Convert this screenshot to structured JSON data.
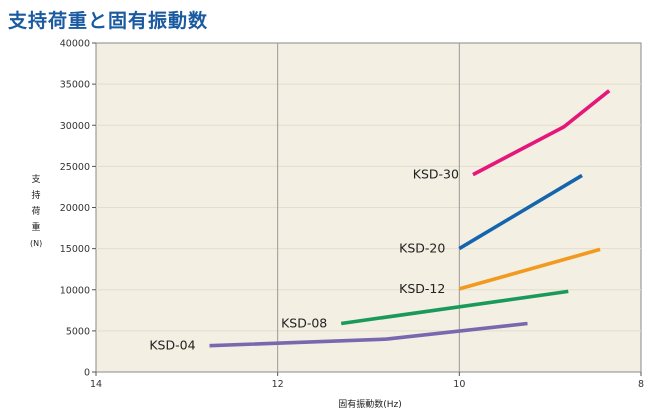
{
  "title": "支持荷重と固有振動数",
  "chart_data": {
    "type": "line",
    "xlabel": "固有振動数(Hz)",
    "ylabel_chars": [
      "支",
      "持",
      "荷",
      "重"
    ],
    "ylabel_unit": "(N)",
    "xlim": [
      14,
      8
    ],
    "ylim": [
      0,
      40000
    ],
    "x_ticks": [
      14,
      12,
      10,
      8
    ],
    "y_ticks": [
      0,
      5000,
      10000,
      15000,
      20000,
      25000,
      30000,
      35000,
      40000
    ],
    "grid": "vertical at 12 and 10",
    "series": [
      {
        "name": "KSD-30",
        "color": "#e5177a",
        "points": [
          [
            9.85,
            24000
          ],
          [
            8.85,
            29800
          ],
          [
            8.35,
            34200
          ]
        ]
      },
      {
        "name": "KSD-20",
        "color": "#1565ae",
        "points": [
          [
            10.0,
            15000
          ],
          [
            8.65,
            23900
          ]
        ]
      },
      {
        "name": "KSD-12",
        "color": "#f29a1f",
        "points": [
          [
            10.0,
            10100
          ],
          [
            8.45,
            14900
          ]
        ]
      },
      {
        "name": "KSD-08",
        "color": "#1a9a5a",
        "points": [
          [
            11.3,
            5900
          ],
          [
            8.8,
            9800
          ]
        ]
      },
      {
        "name": "KSD-04",
        "color": "#7b67b0",
        "points": [
          [
            12.75,
            3200
          ],
          [
            10.8,
            4000
          ],
          [
            9.25,
            5900
          ]
        ]
      }
    ]
  }
}
